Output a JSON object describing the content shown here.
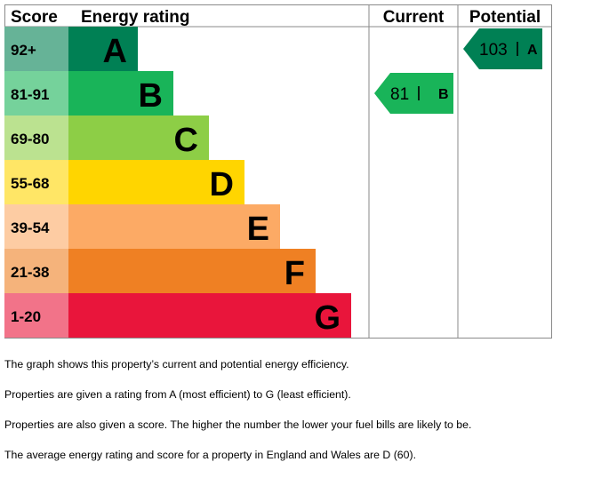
{
  "headers": {
    "score": "Score",
    "rating": "Energy rating",
    "current": "Current",
    "potential": "Potential"
  },
  "chart_data": {
    "type": "bar",
    "title": "",
    "bands": [
      {
        "letter": "A",
        "score_range": "92+",
        "min": 92,
        "max": null,
        "color": "#008054",
        "score_bg": "#66b397"
      },
      {
        "letter": "B",
        "score_range": "81-91",
        "min": 81,
        "max": 91,
        "color": "#19b459",
        "score_bg": "#75d29b"
      },
      {
        "letter": "C",
        "score_range": "69-80",
        "min": 69,
        "max": 80,
        "color": "#8dce46",
        "score_bg": "#bbe290"
      },
      {
        "letter": "D",
        "score_range": "55-68",
        "min": 55,
        "max": 68,
        "color": "#ffd500",
        "score_bg": "#ffe666"
      },
      {
        "letter": "E",
        "score_range": "39-54",
        "min": 39,
        "max": 54,
        "color": "#fcaa65",
        "score_bg": "#fdcca3"
      },
      {
        "letter": "F",
        "score_range": "21-38",
        "min": 21,
        "max": 38,
        "color": "#ef8023",
        "score_bg": "#f5b37b"
      },
      {
        "letter": "G",
        "score_range": "1-20",
        "min": 1,
        "max": 20,
        "color": "#e9153b",
        "score_bg": "#f27389"
      }
    ],
    "current": {
      "score": 81,
      "letter": "B",
      "score_text": "81",
      "letter_text": "B",
      "color": "#19b459"
    },
    "potential": {
      "score": 103,
      "letter": "A",
      "score_text": "103",
      "letter_text": "A",
      "color": "#008054"
    }
  },
  "footnotes": [
    "The graph shows this property’s current and potential energy efficiency.",
    "Properties are given a rating from A (most efficient) to G (least efficient).",
    "Properties are also given a score. The higher the number the lower your fuel bills are likely to be.",
    "The average energy rating and score for a property in England and Wales are D (60)."
  ]
}
